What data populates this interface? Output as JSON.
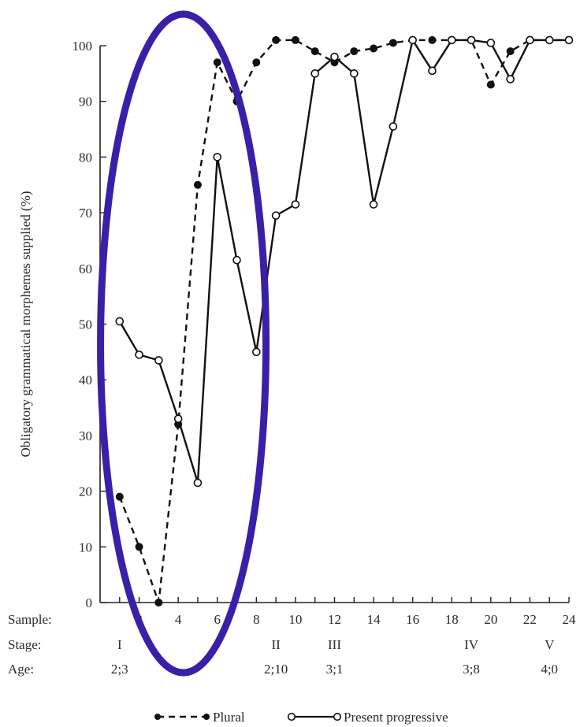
{
  "chart_data": {
    "type": "line",
    "title": "",
    "ylabel": "Obligatory grammatical morphemes supplied (%)",
    "ylim": [
      0,
      100
    ],
    "yticks": [
      "0",
      "10",
      "20",
      "30",
      "40",
      "50",
      "60",
      "70",
      "80",
      "90",
      "100"
    ],
    "xlim": [
      0,
      24
    ],
    "x_row_label": "Sample:",
    "xticks": [
      "2",
      "4",
      "6",
      "8",
      "10",
      "12",
      "14",
      "16",
      "18",
      "20",
      "22",
      "24"
    ],
    "stage_row_label": "Stage:",
    "stages": [
      {
        "x": 1,
        "label": "I"
      },
      {
        "x": 9,
        "label": "II"
      },
      {
        "x": 12,
        "label": "III"
      },
      {
        "x": 19,
        "label": "IV"
      },
      {
        "x": 23,
        "label": "V"
      }
    ],
    "age_row_label": "Age:",
    "ages": [
      {
        "x": 1,
        "label": "2;3"
      },
      {
        "x": 9,
        "label": "2;10"
      },
      {
        "x": 12,
        "label": "3;1"
      },
      {
        "x": 19,
        "label": "3;8"
      },
      {
        "x": 23,
        "label": "4;0"
      }
    ],
    "series": [
      {
        "name": "Plural",
        "style": "dashed-filled",
        "color": "#111111",
        "points": [
          [
            1,
            19
          ],
          [
            2,
            10
          ],
          [
            3,
            0
          ],
          [
            4,
            32
          ],
          [
            5,
            75
          ],
          [
            6,
            97
          ],
          [
            7,
            90
          ],
          [
            8,
            97
          ],
          [
            9,
            101
          ],
          [
            10,
            101
          ],
          [
            11,
            99
          ],
          [
            12,
            97
          ],
          [
            13,
            99
          ],
          [
            14,
            99.5
          ],
          [
            15,
            100.5
          ],
          [
            16,
            101
          ],
          [
            17,
            101
          ],
          [
            18,
            101
          ],
          [
            19,
            101
          ],
          [
            20,
            93
          ],
          [
            21,
            99
          ],
          [
            22,
            101
          ],
          [
            23,
            101
          ],
          [
            24,
            101
          ]
        ]
      },
      {
        "name": "Present progressive",
        "style": "solid-open",
        "color": "#111111",
        "points": [
          [
            1,
            50.5
          ],
          [
            2,
            44.5
          ],
          [
            3,
            43.5
          ],
          [
            4,
            33
          ],
          [
            5,
            21.5
          ],
          [
            6,
            80
          ],
          [
            7,
            61.5
          ],
          [
            8,
            45
          ],
          [
            9,
            69.5
          ],
          [
            10,
            71.5
          ],
          [
            11,
            95
          ],
          [
            12,
            98
          ],
          [
            13,
            95
          ],
          [
            14,
            71.5
          ],
          [
            15,
            85.5
          ],
          [
            16,
            101
          ],
          [
            17,
            95.5
          ],
          [
            18,
            101
          ],
          [
            19,
            101
          ],
          [
            20,
            100.5
          ],
          [
            21,
            94
          ],
          [
            22,
            101
          ],
          [
            23,
            101
          ],
          [
            24,
            101
          ]
        ]
      }
    ],
    "legend": {
      "placement": "bottom-center",
      "entries": [
        "Plural",
        "Present progressive"
      ]
    },
    "annotation": {
      "shape": "ellipse",
      "color": "#3a1fa8",
      "x_range": [
        2,
        7
      ]
    },
    "grid": false
  }
}
